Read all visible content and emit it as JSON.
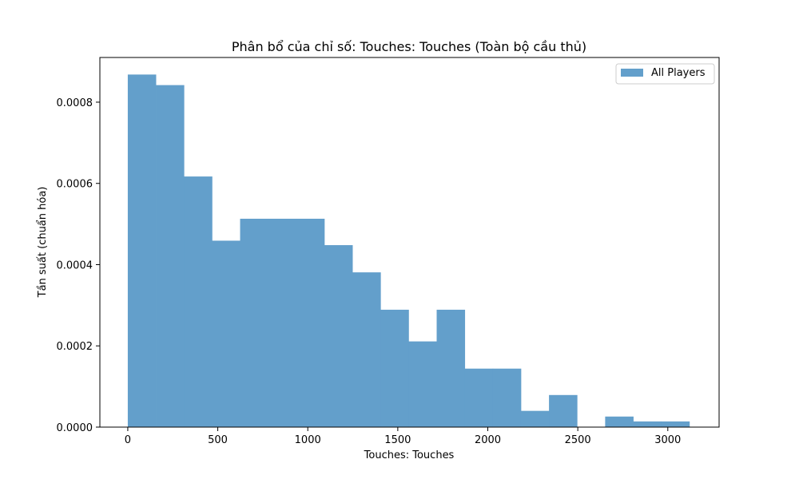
{
  "chart_data": {
    "type": "bar",
    "title": "Phân bổ của chỉ số: Touches: Touches (Toàn bộ cầu thủ)",
    "xlabel": "Touches: Touches",
    "ylabel": "Tần suất (chuẩn hóa)",
    "xlim": [
      -155,
      3285
    ],
    "ylim": [
      0,
      0.00091
    ],
    "x_ticks": [
      0,
      500,
      1000,
      1500,
      2000,
      2500,
      3000
    ],
    "y_ticks": [
      0,
      0.0002,
      0.0004,
      0.0006,
      0.0008
    ],
    "x_tick_labels": [
      "0",
      "500",
      "1000",
      "1500",
      "2000",
      "2500",
      "3000"
    ],
    "y_tick_labels": [
      "0.0000",
      "0.0002",
      "0.0004",
      "0.0006",
      "0.0008"
    ],
    "legend_position": "top-right",
    "grid": false,
    "bar_color": "#639fcb",
    "series": [
      {
        "name": "All Players",
        "bins": [
          0,
          156,
          312,
          468,
          624,
          780,
          936,
          1092,
          1248,
          1404,
          1560,
          1716,
          1872,
          2028,
          2184,
          2340,
          2496,
          2652,
          2808,
          2964,
          3120
        ],
        "values": [
          0.000868,
          0.000842,
          0.000617,
          0.000459,
          0.000513,
          0.000513,
          0.000513,
          0.000448,
          0.000381,
          0.000289,
          0.000211,
          0.000289,
          0.000144,
          0.000144,
          4e-05,
          7.9e-05,
          0,
          2.6e-05,
          1.4e-05,
          1.4e-05
        ]
      }
    ]
  }
}
